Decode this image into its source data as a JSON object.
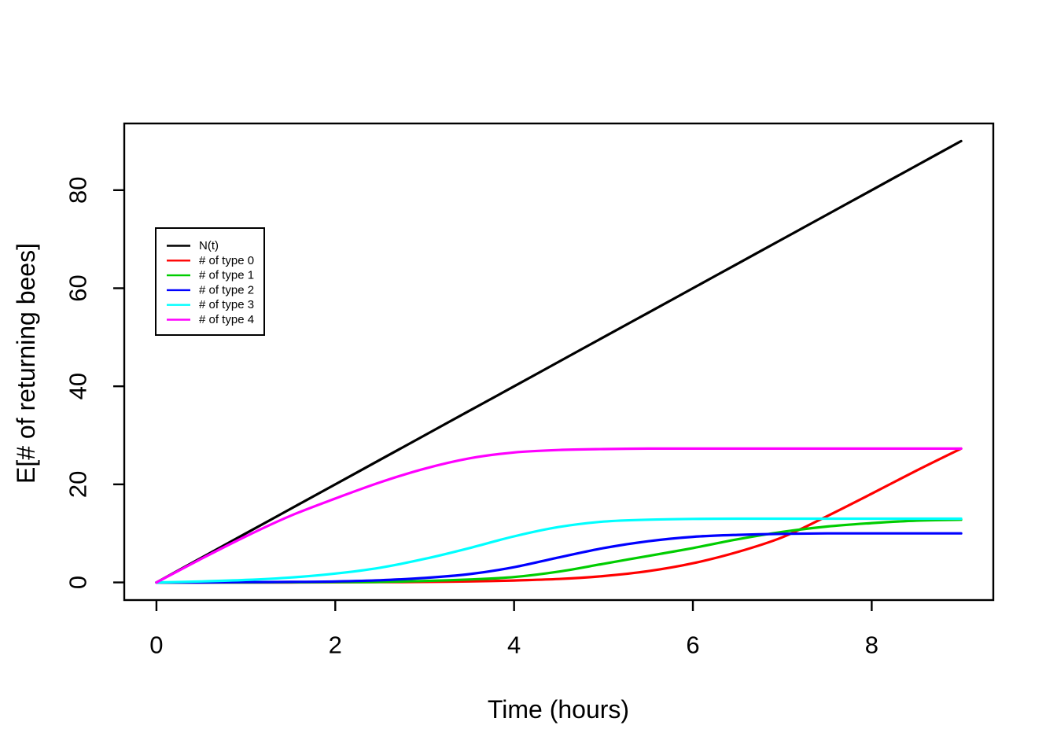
{
  "chart_data": {
    "type": "line",
    "title": "",
    "xlabel": "Time (hours)",
    "ylabel": "E[# of returning bees]",
    "xlim": [
      0,
      9
    ],
    "ylim": [
      0,
      90
    ],
    "x_ticks": [
      0,
      2,
      4,
      6,
      8
    ],
    "y_ticks": [
      0,
      20,
      40,
      60,
      80
    ],
    "grid": false,
    "legend_position": "upper-left-inside",
    "axis_color": "#000000",
    "background_color": "#ffffff",
    "x": [
      0,
      0.5,
      1,
      1.5,
      2,
      2.5,
      3,
      3.5,
      4,
      4.5,
      5,
      5.5,
      6,
      6.5,
      7,
      7.5,
      8,
      8.5,
      9
    ],
    "series": [
      {
        "name": "N(t)",
        "color": "#000000",
        "values": [
          0,
          5,
          10,
          15,
          20,
          25,
          30,
          35,
          40,
          45,
          50,
          55,
          60,
          65,
          70,
          75,
          80,
          85,
          90
        ]
      },
      {
        "name": "# of type 0",
        "color": "#FF0000",
        "values": [
          0,
          0,
          0,
          0,
          0.02,
          0.05,
          0.1,
          0.2,
          0.4,
          0.7,
          1.3,
          2.3,
          3.9,
          6.2,
          9.2,
          13.5,
          18.1,
          22.8,
          27.3
        ]
      },
      {
        "name": "# of type 1",
        "color": "#00CD00",
        "values": [
          0,
          0,
          0,
          0.02,
          0.05,
          0.1,
          0.3,
          0.6,
          1.1,
          2.2,
          3.8,
          5.4,
          7.0,
          8.8,
          10.3,
          11.4,
          12.1,
          12.6,
          12.8
        ]
      },
      {
        "name": "# of type 2",
        "color": "#0000FF",
        "values": [
          0,
          0,
          0.05,
          0.1,
          0.2,
          0.45,
          0.9,
          1.7,
          3.1,
          5.1,
          7.0,
          8.4,
          9.3,
          9.7,
          9.9,
          10,
          10,
          10,
          10
        ]
      },
      {
        "name": "# of type 3",
        "color": "#00FFFF",
        "values": [
          0,
          0.2,
          0.5,
          1.0,
          1.8,
          3.0,
          4.8,
          7.0,
          9.4,
          11.3,
          12.4,
          12.8,
          12.95,
          13,
          13,
          13,
          13,
          13,
          13
        ]
      },
      {
        "name": "# of type 4",
        "color": "#FF00FF",
        "values": [
          0,
          4.8,
          9.4,
          13.6,
          17.1,
          20.4,
          23.2,
          25.3,
          26.5,
          27.0,
          27.2,
          27.3,
          27.3,
          27.3,
          27.3,
          27.3,
          27.3,
          27.3,
          27.3
        ]
      }
    ]
  }
}
